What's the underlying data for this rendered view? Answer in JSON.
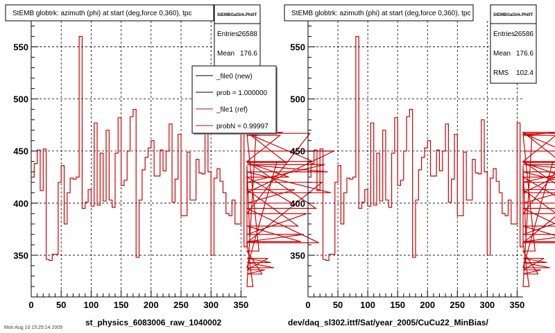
{
  "panels": [
    {
      "title": "StEMB globtrk: azimuth (phi) at start (deg,force 0,360), tpc",
      "caption": "st_physics_6083006_raw_1040002",
      "stats": {
        "name": "StEMBGaGlrk.Phi0T",
        "rows": [
          {
            "label": "Entries",
            "value": "26588"
          },
          {
            "label": "Mean",
            "value": "176.6"
          }
        ]
      },
      "legend": [
        {
          "label": "_file0 (new)",
          "color": "#000000"
        },
        {
          "label": "prob = 1.000000",
          "color": "#000000"
        },
        {
          "label": "_file1 (ref)",
          "color": "#cc0000"
        },
        {
          "label": "probN = 0.99997",
          "color": "#cc0000"
        }
      ]
    },
    {
      "title": "StEMB globtrk: azimuth (phi) at start (deg,force 0,360), tpc",
      "caption": "dev/daq_sl302.ittf/Sat/year_2005/CuCu22_MinBias/",
      "stats": {
        "name": "StEMBGaGlrk.Phi0T",
        "rows": [
          {
            "label": "Entries",
            "value": "26586"
          },
          {
            "label": "Mean",
            "value": "176.6"
          },
          {
            "label": "RMS",
            "value": "102.4"
          }
        ]
      }
    }
  ],
  "bottom_left_text": "Mon Aug 10 15:25:14 2009",
  "colors": {
    "series": "#cc0000",
    "axis": "#000000",
    "background": "#ffffff"
  },
  "chart_data": [
    {
      "type": "line",
      "xlim": [
        0,
        360
      ],
      "ylim": [
        310,
        575
      ],
      "xticks": [
        0,
        50,
        100,
        150,
        200,
        250,
        300,
        350
      ],
      "yticks": [
        350,
        400,
        450,
        500,
        550
      ],
      "grid": true,
      "legend_position": "top-right",
      "series": [
        {
          "name": "_file1 (ref)",
          "bin_width": 5,
          "values": [
            425,
            438,
            451,
            412,
            452,
            346,
            345,
            351,
            351,
            420,
            436,
            380,
            410,
            424,
            423,
            425,
            560,
            395,
            401,
            413,
            397,
            477,
            398,
            448,
            402,
            470,
            403,
            396,
            448,
            482,
            417,
            422,
            450,
            483,
            490,
            348,
            403,
            432,
            444,
            453,
            460,
            426,
            426,
            451,
            431,
            450,
            476,
            401,
            423,
            466,
            388,
            388,
            449,
            403,
            403,
            442,
            429,
            428,
            480,
            430,
            350,
            424,
            433,
            421,
            410,
            390,
            388,
            403,
            380,
            380,
            477,
            358,
            436,
            362,
            320,
            466,
            354,
            332,
            336,
            347,
            343,
            338,
            440,
            465,
            468,
            439,
            425,
            400,
            413,
            378,
            363,
            370,
            390,
            467,
            440,
            395,
            362,
            420,
            437,
            430,
            410,
            450
          ]
        }
      ]
    },
    {
      "type": "line",
      "xlim": [
        0,
        360
      ],
      "ylim": [
        310,
        575
      ],
      "xticks": [
        0,
        50,
        100,
        150,
        200,
        250,
        300,
        350
      ],
      "yticks": [
        350,
        400,
        450,
        500,
        550
      ],
      "grid": true,
      "series": [
        {
          "values": [
            425,
            438,
            451,
            412,
            452,
            346,
            345,
            351,
            351,
            420,
            436,
            380,
            410,
            424,
            423,
            425,
            560,
            395,
            401,
            413,
            397,
            477,
            398,
            448,
            402,
            470,
            403,
            396,
            448,
            482,
            417,
            422,
            450,
            483,
            490,
            348,
            403,
            432,
            444,
            453,
            460,
            426,
            426,
            451,
            431,
            450,
            476,
            401,
            423,
            466,
            388,
            388,
            449,
            403,
            403,
            442,
            429,
            428,
            480,
            430,
            350,
            424,
            433,
            421,
            410,
            390,
            388,
            403,
            380,
            380,
            477,
            358,
            436,
            362,
            320,
            466,
            354,
            332,
            336,
            347,
            343,
            338,
            440,
            465,
            468,
            439,
            425,
            400,
            413,
            378,
            363,
            370,
            390,
            467,
            440,
            395,
            362,
            420,
            437,
            430,
            410,
            450
          ]
        }
      ]
    }
  ]
}
